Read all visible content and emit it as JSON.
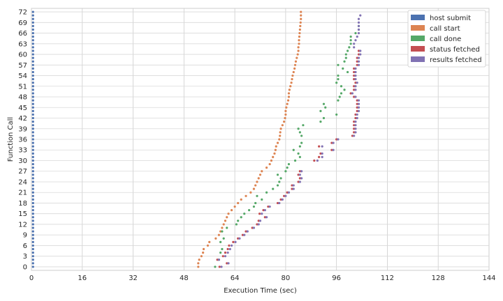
{
  "chart_data": {
    "type": "scatter",
    "xlabel": "Execution Time (sec)",
    "ylabel": "Function Call",
    "xlim": [
      0,
      144
    ],
    "ylim": [
      -1,
      73
    ],
    "xticks": [
      0,
      16,
      32,
      48,
      64,
      80,
      96,
      112,
      128,
      144
    ],
    "yticks": [
      0,
      3,
      6,
      9,
      12,
      15,
      18,
      21,
      24,
      27,
      30,
      33,
      36,
      39,
      42,
      45,
      48,
      51,
      54,
      57,
      60,
      63,
      66,
      69,
      72
    ],
    "grid": true,
    "legend_position": "top-right",
    "series": [
      {
        "name": "host submit",
        "color": "#4c72b0",
        "x": [
          0.5,
          0.5,
          0.5,
          0.5,
          0.5,
          0.5,
          0.5,
          0.5,
          0.5,
          0.5,
          0.5,
          0.5,
          0.5,
          0.5,
          0.5,
          0.5,
          0.5,
          0.5,
          0.5,
          0.5,
          0.5,
          0.5,
          0.5,
          0.5,
          0.5,
          0.5,
          0.5,
          0.5,
          0.5,
          0.5,
          0.5,
          0.5,
          0.5,
          0.5,
          0.5,
          0.5,
          0.5,
          0.5,
          0.5,
          0.5,
          0.5,
          0.5,
          0.5,
          0.5,
          0.5,
          0.5,
          0.5,
          0.5,
          0.5,
          0.5,
          0.5,
          0.5,
          0.5,
          0.5,
          0.5,
          0.5,
          0.5,
          0.5,
          0.5,
          0.5,
          0.5,
          0.5,
          0.5,
          0.5,
          0.5,
          0.5,
          0.5,
          0.5,
          0.5,
          0.5,
          0.5,
          0.5,
          0.5
        ],
        "y": [
          0,
          1,
          2,
          3,
          4,
          5,
          6,
          7,
          8,
          9,
          10,
          11,
          12,
          13,
          14,
          15,
          16,
          17,
          18,
          19,
          20,
          21,
          22,
          23,
          24,
          25,
          26,
          27,
          28,
          29,
          30,
          31,
          32,
          33,
          34,
          35,
          36,
          37,
          38,
          39,
          40,
          41,
          42,
          43,
          44,
          45,
          46,
          47,
          48,
          49,
          50,
          51,
          52,
          53,
          54,
          55,
          56,
          57,
          58,
          59,
          60,
          61,
          62,
          63,
          64,
          65,
          66,
          67,
          68,
          69,
          70,
          71,
          72
        ]
      },
      {
        "name": "call start",
        "color": "#dd8452",
        "x": [
          52.5,
          52.5,
          52.8,
          53.5,
          54.0,
          54.2,
          55.5,
          56.0,
          58.0,
          59.0,
          59.5,
          60.0,
          60.5,
          61.0,
          61.5,
          62.0,
          63.0,
          64.0,
          65.0,
          66.0,
          67.5,
          69.0,
          70.0,
          70.5,
          71.0,
          71.5,
          72.0,
          72.5,
          74.0,
          75.0,
          75.5,
          76.0,
          76.5,
          76.8,
          77.0,
          77.5,
          78.0,
          78.2,
          78.3,
          78.5,
          79.0,
          79.5,
          79.8,
          80.0,
          80.0,
          80.2,
          80.5,
          80.8,
          81.0,
          81.0,
          81.2,
          81.5,
          81.8,
          82.0,
          82.2,
          82.5,
          82.8,
          83.0,
          83.2,
          83.5,
          83.8,
          84.0,
          84.0,
          84.2,
          84.2,
          84.3,
          84.4,
          84.5,
          84.6,
          84.7,
          84.8,
          84.8,
          84.8
        ],
        "y": [
          0,
          1,
          2,
          3,
          4,
          5,
          6,
          7,
          8,
          9,
          10,
          11,
          12,
          13,
          14,
          15,
          16,
          17,
          18,
          19,
          20,
          21,
          22,
          23,
          24,
          25,
          26,
          27,
          28,
          29,
          30,
          31,
          32,
          33,
          34,
          35,
          36,
          37,
          38,
          39,
          40,
          41,
          42,
          43,
          44,
          45,
          46,
          47,
          48,
          49,
          50,
          51,
          52,
          53,
          54,
          55,
          56,
          57,
          58,
          59,
          60,
          61,
          62,
          63,
          64,
          65,
          66,
          67,
          68,
          69,
          70,
          71,
          72
        ]
      },
      {
        "name": "call done",
        "color": "#55a868",
        "x": [
          57.8,
          59.0,
          59.5,
          60.0,
          59.5,
          60.5,
          60.0,
          61.5,
          64.5,
          65.0,
          66.0,
          67.0,
          68.5,
          70.0,
          70.5,
          72.5,
          71.0,
          74.0,
          76.0,
          77.5,
          78.0,
          78.5,
          77.5,
          80.0,
          80.5,
          81.0,
          83.0,
          84.5,
          84.0,
          82.5,
          84.5,
          85.0,
          85.0,
          84.5,
          84.0,
          85.5,
          91.0,
          92.0,
          96.0,
          91.0,
          92.5,
          92.0,
          96.5,
          97.0,
          97.5,
          98.5,
          97.5,
          96.0,
          96.5,
          96.5,
          99.5,
          98.0,
          96.5,
          98.5,
          99.0,
          99.0,
          99.5,
          100.0,
          100.5,
          100.5,
          100.5,
          102.0,
          103.0,
          103.0
        ],
        "y": [
          0,
          2,
          4,
          5,
          7,
          8,
          10,
          11,
          12,
          13,
          14,
          15,
          16,
          17,
          18,
          19,
          20,
          21,
          22,
          23,
          24,
          25,
          26,
          27,
          28,
          29,
          30,
          31,
          32,
          33,
          34,
          35,
          37,
          38,
          39,
          40,
          41,
          42,
          43,
          44,
          45,
          46,
          47,
          48,
          49,
          50,
          51,
          52,
          53,
          54,
          55,
          56,
          57,
          58,
          59,
          60,
          61,
          62,
          63,
          64,
          65,
          66,
          67,
          68
        ]
      },
      {
        "name": "status fetched",
        "color": "#c44e52",
        "x": [
          59.2,
          61.5,
          58.5,
          60.3,
          61.0,
          61.8,
          62.2,
          63.5,
          65.0,
          66.5,
          67.5,
          69.5,
          71.0,
          71.5,
          73.5,
          71.8,
          73.0,
          74.5,
          77.5,
          78.5,
          79.5,
          80.5,
          82.0,
          82.0,
          84.0,
          84.5,
          84.0,
          84.5,
          89.0,
          90.5,
          91.0,
          94.5,
          90.5,
          94.5,
          96.0,
          101.0,
          101.5,
          101.5,
          101.5,
          101.5,
          102.0,
          102.0,
          102.5,
          102.5,
          102.5,
          102.5,
          101.5,
          100.5,
          101.5,
          101.5,
          102.0,
          101.5,
          101.5,
          101.5,
          101.5,
          102.5,
          102.5,
          102.5,
          103.0,
          103.0
        ],
        "y": [
          0,
          1,
          2,
          3,
          4,
          5,
          6,
          7,
          8,
          9,
          10,
          11,
          12,
          13,
          14,
          15,
          16,
          17,
          18,
          19,
          20,
          21,
          22,
          23,
          24,
          25,
          26,
          27,
          30,
          31,
          32,
          33,
          34,
          35,
          36,
          37,
          38,
          39,
          40,
          41,
          42,
          43,
          44,
          45,
          46,
          47,
          48,
          49,
          50,
          51,
          52,
          53,
          54,
          55,
          56,
          57,
          58,
          59,
          60,
          61
        ]
      },
      {
        "name": "results fetched",
        "color": "#8172b3",
        "x": [
          59.8,
          62.0,
          59.0,
          61.0,
          61.8,
          62.5,
          63.0,
          64.2,
          65.5,
          67.0,
          68.0,
          70.0,
          71.5,
          72.0,
          74.0,
          72.5,
          73.5,
          75.0,
          78.0,
          79.0,
          80.0,
          81.0,
          82.5,
          82.5,
          84.5,
          85.0,
          84.5,
          85.0,
          90.0,
          91.5,
          91.5,
          95.0,
          91.5,
          95.0,
          96.5,
          101.5,
          102.0,
          102.0,
          102.0,
          102.0,
          102.5,
          102.5,
          103.0,
          103.0,
          103.0,
          103.0,
          102.0,
          101.0,
          102.0,
          102.0,
          102.5,
          102.0,
          102.0,
          102.0,
          102.0,
          103.0,
          103.0,
          103.0,
          103.5,
          103.5,
          101.5,
          101.5,
          102.0,
          102.5,
          103.0,
          103.0,
          103.0,
          103.0,
          103.0,
          103.5
        ],
        "y": [
          0,
          1,
          2,
          3,
          4,
          5,
          6,
          7,
          8,
          9,
          10,
          11,
          12,
          13,
          14,
          15,
          16,
          17,
          18,
          19,
          20,
          21,
          22,
          23,
          24,
          25,
          26,
          27,
          30,
          31,
          32,
          33,
          34,
          35,
          36,
          37,
          38,
          39,
          40,
          41,
          42,
          43,
          44,
          45,
          46,
          47,
          48,
          49,
          50,
          51,
          52,
          53,
          54,
          55,
          56,
          57,
          58,
          59,
          60,
          61,
          62,
          63,
          64,
          65,
          66,
          67,
          68,
          69,
          70,
          71
        ]
      }
    ]
  }
}
